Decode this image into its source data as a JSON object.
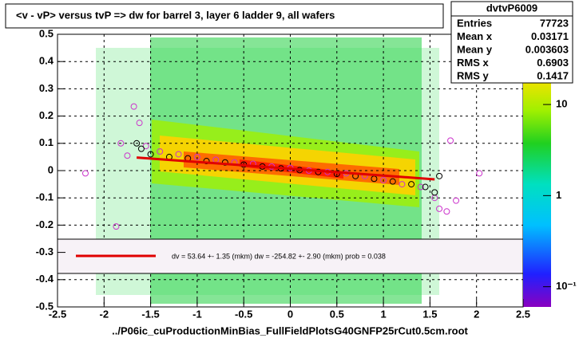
{
  "chart_data": {
    "type": "scatter",
    "title": "<v - vP>       versus  tvP =>  dw for barrel 3, layer 6 ladder 9, all wafers",
    "x_label": "../P06ic_cuProductionMinBias_FullFieldPlotsG40GNFP25rCut0.5cm.root",
    "xlim": [
      -2.5,
      2.5
    ],
    "xticks": [
      -2.5,
      -2,
      -1.5,
      -1,
      -0.5,
      0,
      0.5,
      1,
      1.5,
      2,
      2.5
    ],
    "ylim": [
      -0.5,
      0.5
    ],
    "yticks": [
      -0.5,
      -0.4,
      -0.3,
      -0.2,
      -0.1,
      0,
      0.1,
      0.2,
      0.3,
      0.4,
      0.5
    ],
    "grid": true,
    "zlim": [
      0.06,
      59
    ],
    "log_z": true,
    "zticks": [
      {
        "value": 10,
        "label": "10"
      },
      {
        "value": 1,
        "label": "1"
      },
      {
        "value": 0.1,
        "label": "10⁻¹"
      }
    ],
    "stats": {
      "name": "dvtvP6009",
      "rows": [
        {
          "label": "Entries",
          "value": 77723
        },
        {
          "label": "Mean x",
          "value": 0.03171
        },
        {
          "label": "Mean y",
          "value": 0.003603
        },
        {
          "label": "RMS x",
          "value": 0.6903
        },
        {
          "label": "RMS y",
          "value": 0.1417
        }
      ]
    },
    "legend_text": "dv =    53.64 +-  1.35 (mkm) dw = -254.82 +-  2.90 (mkm) prob = 0.038",
    "series": [
      {
        "name": "profile",
        "color": "#cc33cc",
        "x": [
          -2.2,
          -1.87,
          -1.82,
          -1.75,
          -1.68,
          -1.62,
          -1.55,
          -1.4,
          -1.2,
          -1.0,
          -0.8,
          -0.6,
          -0.4,
          -0.2,
          0,
          0.2,
          0.4,
          0.6,
          0.8,
          1.0,
          1.2,
          1.4,
          1.55,
          1.6,
          1.68,
          1.72,
          1.78,
          2.03
        ],
        "values": [
          -0.01,
          -0.205,
          0.1,
          0.055,
          0.235,
          0.175,
          0.09,
          0.07,
          0.06,
          0.05,
          0.04,
          0.03,
          0.025,
          0.015,
          0.01,
          0.0,
          -0.005,
          -0.01,
          -0.02,
          -0.035,
          -0.05,
          -0.06,
          -0.1,
          -0.14,
          -0.15,
          0.11,
          -0.11,
          -0.01
        ]
      },
      {
        "name": "mean",
        "color": "#000000",
        "x": [
          -1.65,
          -1.6,
          -1.5,
          -1.3,
          -1.1,
          -0.9,
          -0.7,
          -0.5,
          -0.3,
          -0.1,
          0.1,
          0.3,
          0.5,
          0.7,
          0.9,
          1.1,
          1.3,
          1.45,
          1.55,
          1.6
        ],
        "values": [
          0.1,
          0.08,
          0.06,
          0.05,
          0.045,
          0.035,
          0.03,
          0.022,
          0.015,
          0.008,
          0.002,
          -0.005,
          -0.012,
          -0.02,
          -0.03,
          -0.04,
          -0.05,
          -0.06,
          -0.08,
          -0.02
        ]
      }
    ],
    "fit": {
      "x": [
        -1.65,
        1.55
      ],
      "values": [
        0.048,
        -0.032
      ],
      "color": "#e00000"
    }
  }
}
